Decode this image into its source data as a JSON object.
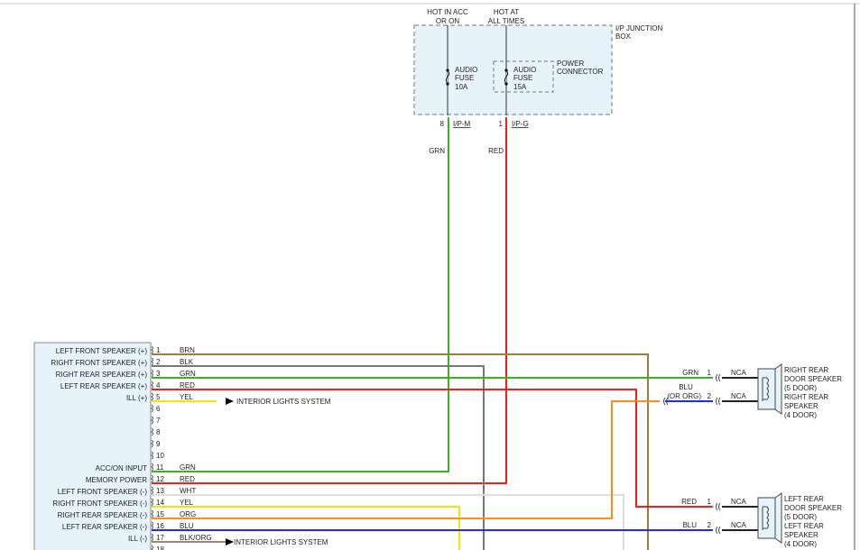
{
  "junction_box": {
    "title": [
      "I/P JUNCTION",
      "BOX"
    ],
    "supply_left": [
      "HOT IN ACC",
      "OR ON"
    ],
    "supply_right": [
      "HOT AT",
      "ALL TIMES"
    ],
    "fuse_left": [
      "AUDIO",
      "FUSE",
      "10A"
    ],
    "fuse_right": [
      "AUDIO",
      "FUSE",
      "15A"
    ],
    "power_connector": [
      "POWER",
      "CONNECTOR"
    ],
    "pin_left": "8",
    "conn_left": "I/P-M",
    "wire_left": "GRN",
    "pin_right": "1",
    "conn_right": "I/P-G",
    "wire_right": "RED"
  },
  "radio_pins": [
    {
      "pin": "1",
      "label": "LEFT FRONT SPEAKER (+)",
      "wire": "BRN",
      "color": "#9a7d3a"
    },
    {
      "pin": "2",
      "label": "RIGHT FRONT SPEAKER (+)",
      "wire": "BLK",
      "color": "#777777"
    },
    {
      "pin": "3",
      "label": "RIGHT REAR SPEAKER (+)",
      "wire": "GRN",
      "color": "#3db01e"
    },
    {
      "pin": "4",
      "label": "LEFT REAR SPEAKER (+)",
      "wire": "RED",
      "color": "#ff1a1a"
    },
    {
      "pin": "5",
      "label": "ILL (+)",
      "wire": "YEL",
      "color": "#f5e600"
    },
    {
      "pin": "6",
      "label": "",
      "wire": "",
      "color": ""
    },
    {
      "pin": "7",
      "label": "",
      "wire": "",
      "color": ""
    },
    {
      "pin": "8",
      "label": "",
      "wire": "",
      "color": ""
    },
    {
      "pin": "9",
      "label": "",
      "wire": "",
      "color": ""
    },
    {
      "pin": "10",
      "label": "",
      "wire": "",
      "color": ""
    },
    {
      "pin": "11",
      "label": "ACC/ON INPUT",
      "wire": "GRN",
      "color": "#3db01e"
    },
    {
      "pin": "12",
      "label": "MEMORY POWER",
      "wire": "RED",
      "color": "#ff1a1a"
    },
    {
      "pin": "13",
      "label": "LEFT FRONT SPEAKER (-)",
      "wire": "WHT",
      "color": "#dddddd"
    },
    {
      "pin": "14",
      "label": "RIGHT FRONT SPEAKER (-)",
      "wire": "YEL",
      "color": "#f5e600"
    },
    {
      "pin": "15",
      "label": "RIGHT REAR SPEAKER (-)",
      "wire": "ORG",
      "color": "#ff8c1a"
    },
    {
      "pin": "16",
      "label": "LEFT REAR SPEAKER (-)",
      "wire": "BLU",
      "color": "#1a2cff"
    },
    {
      "pin": "17",
      "label": "ILL (-)",
      "wire": "BLK/ORG",
      "color": "#9a8a70"
    },
    {
      "pin": "18",
      "label": "",
      "wire": "",
      "color": ""
    }
  ],
  "arrows": {
    "ill_plus": "INTERIOR LIGHTS SYSTEM",
    "ill_minus": "INTERIOR LIGHTS SYSTEM"
  },
  "right_rear": {
    "pin1": "1",
    "wire1": "GRN",
    "nca1": "NCA",
    "pin2": "2",
    "wire2": [
      "BLU",
      "(OR ORG)"
    ],
    "nca2": "NCA",
    "label": [
      "RIGHT REAR",
      "DOOR SPEAKER",
      "(5 DOOR)",
      "RIGHT REAR",
      "SPEAKER",
      "(4 DOOR)"
    ]
  },
  "left_rear": {
    "pin1": "1",
    "wire1": "RED",
    "nca1": "NCA",
    "pin2": "2",
    "wire2": "BLU",
    "nca2": "NCA",
    "label": [
      "LEFT REAR",
      "DOOR SPEAKER",
      "(5 DOOR)",
      "LEFT REAR",
      "SPEAKER",
      "(4 DOOR)"
    ]
  }
}
